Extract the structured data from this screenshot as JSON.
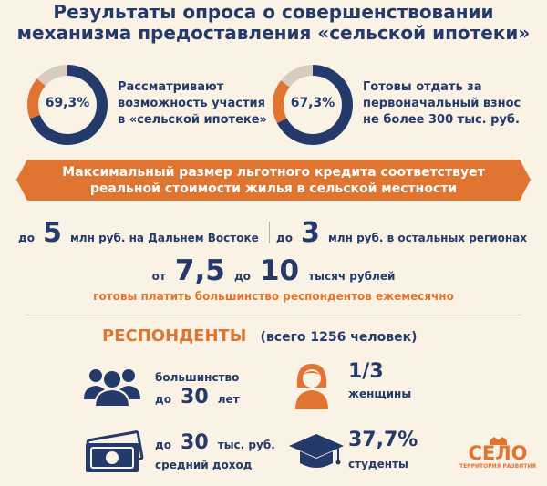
{
  "title": {
    "line1": "Результаты опроса о совершенствовании",
    "line2": "механизма предоставления «сельской ипотеки»"
  },
  "stats": [
    {
      "percent_label": "69,3%",
      "value": 69.3,
      "text": [
        "Рассматривают",
        "возможность участия",
        "в «сельской ипотеке»"
      ]
    },
    {
      "percent_label": "67,3%",
      "value": 67.3,
      "text": [
        "Готовы отдать за",
        "первоначальный взнос",
        "не более 300 тыс. руб."
      ]
    }
  ],
  "banner": {
    "line1": "Максимальный размер льготного кредита соответствует",
    "line2": "реальной стоимости жилья в сельской местности"
  },
  "credit": {
    "left_prefix": "до",
    "left_num": "5",
    "left_suffix": "млн руб. на Дальнем Востоке",
    "right_prefix": "до",
    "right_num": "3",
    "right_suffix": "млн руб. в остальных регионах"
  },
  "payment": {
    "from": "от",
    "num1": "7,5",
    "to": "до",
    "num2": "10",
    "unit": "тысяч рублей",
    "caption": "готовы платить большинство респондентов ежемесячно"
  },
  "respondents": {
    "heading": "РЕСПОНДЕНТЫ",
    "total": "(всего 1256 человек)",
    "age": {
      "line1": "большинство",
      "prefix": "до",
      "num": "30",
      "unit": "лет"
    },
    "women": {
      "num": "1/3",
      "label": "женщины"
    },
    "income": {
      "prefix": "до",
      "num": "30",
      "unit": "тыс. руб.",
      "label": "средний доход"
    },
    "students": {
      "num": "37,7%",
      "label": "студенты"
    }
  },
  "logo": {
    "name": "СЕЛО",
    "tagline": "ТЕРРИТОРИЯ РАЗВИТИЯ"
  },
  "colors": {
    "navy": "#233a6b",
    "orange": "#e07532",
    "ring_track": "#d6cdc0",
    "background": "#fbf2e6"
  }
}
